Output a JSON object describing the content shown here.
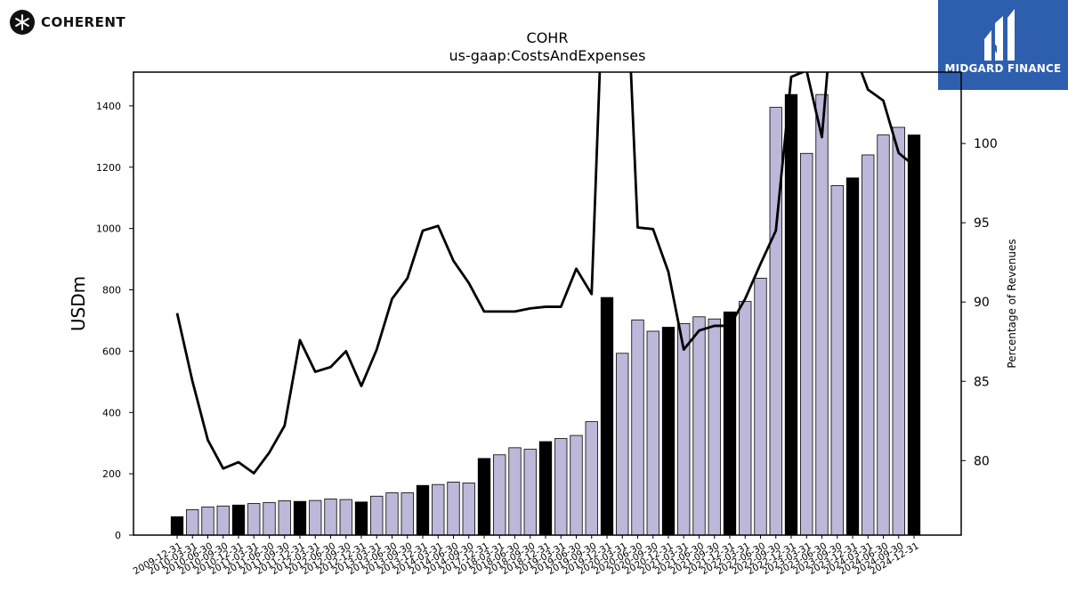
{
  "branding": {
    "left_logo_text": "COHERENT",
    "left_logo_icon": "coherent-starburst-icon",
    "right_logo_text": "MIDGARD FINANCE",
    "right_logo_icon": "midgard-m-icon",
    "right_logo_color": "#2d5fae"
  },
  "chart_data": {
    "type": "bar",
    "title": "COHR",
    "subtitle": "us-gaap:CostsAndExpenses",
    "ylabel": "USDm",
    "ylabel_right": "Percentage of Revenues",
    "ylim": [
      0,
      1510
    ],
    "ylim_right": [
      75.3,
      104.5
    ],
    "yticks": [
      0,
      200,
      400,
      600,
      800,
      1000,
      1200,
      1400
    ],
    "yticks_right": [
      80,
      85,
      90,
      95,
      100
    ],
    "colors": {
      "annual_bar": "#000000",
      "quarter_bar": "#bcb8d9",
      "line": "#000000"
    },
    "categories": [
      "2009-12-31",
      "2010-03-31",
      "2010-06-30",
      "2010-09-30",
      "2010-12-31",
      "2011-03-31",
      "2011-06-30",
      "2011-09-30",
      "2011-12-31",
      "2012-03-31",
      "2012-06-30",
      "2012-09-30",
      "2012-12-31",
      "2013-03-31",
      "2013-06-30",
      "2013-09-30",
      "2013-12-31",
      "2014-03-31",
      "2014-06-30",
      "2014-09-30",
      "2017-12-31",
      "2018-03-31",
      "2018-06-30",
      "2018-09-30",
      "2018-12-31",
      "2019-03-31",
      "2019-06-30",
      "2019-09-30",
      "2019-12-31",
      "2020-03-31",
      "2020-06-30",
      "2020-09-30",
      "2020-12-31",
      "2021-03-31",
      "2021-06-30",
      "2021-09-30",
      "2021-12-31",
      "2022-03-31",
      "2022-06-30",
      "2022-09-30",
      "2022-12-31",
      "2023-03-31",
      "2023-06-30",
      "2023-09-30",
      "2023-12-31",
      "2024-03-31",
      "2024-06-30",
      "2024-09-30",
      "2024-12-31"
    ],
    "series": [
      {
        "type": "bar",
        "values": [
          60,
          83,
          92,
          95,
          98,
          103,
          106,
          112,
          110,
          113,
          118,
          116,
          108,
          127,
          138,
          138,
          162,
          165,
          173,
          170,
          250,
          262,
          285,
          280,
          305,
          315,
          325,
          370,
          775,
          593,
          702,
          665,
          678,
          690,
          712,
          705,
          728,
          762,
          838,
          1395,
          1437,
          1245,
          1437,
          1140,
          1165,
          1240,
          1305,
          1330,
          1305
        ],
        "annual": [
          true,
          false,
          false,
          false,
          true,
          false,
          false,
          false,
          true,
          false,
          false,
          false,
          true,
          false,
          false,
          false,
          true,
          false,
          false,
          false,
          true,
          false,
          false,
          false,
          true,
          false,
          false,
          false,
          true,
          false,
          false,
          false,
          true,
          false,
          false,
          false,
          true,
          false,
          false,
          false,
          true,
          false,
          false,
          false,
          true,
          false,
          false,
          false,
          true
        ]
      },
      {
        "type": "line",
        "values": [
          89.3,
          85.0,
          81.3,
          79.5,
          79.9,
          79.2,
          80.5,
          82.2,
          87.6,
          85.6,
          85.9,
          86.9,
          84.7,
          87.0,
          90.2,
          91.5,
          94.5,
          94.8,
          92.6,
          91.2,
          89.4,
          89.4,
          89.4,
          89.6,
          89.7,
          89.7,
          92.1,
          90.5,
          117.0,
          117.0,
          94.7,
          94.6,
          91.9,
          87.0,
          88.2,
          88.5,
          88.5,
          90.2,
          92.4,
          94.5,
          104.2,
          104.6,
          100.4,
          112.0,
          106.0,
          103.4,
          102.7,
          99.4,
          98.6
        ]
      }
    ]
  }
}
